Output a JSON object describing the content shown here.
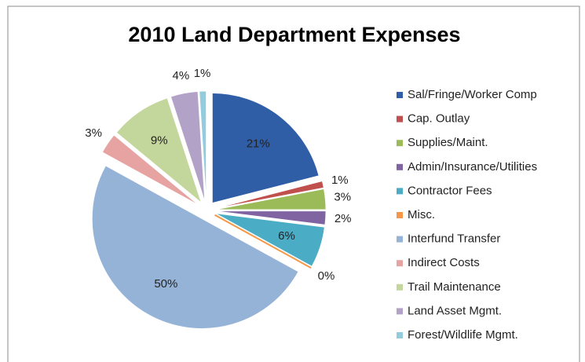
{
  "chart_data": {
    "type": "pie",
    "title": "2010 Land Department Expenses",
    "categories": [
      "Sal/Fringe/Worker Comp",
      "Cap. Outlay",
      "Supplies/Maint.",
      "Admin/Insurance/Utilities",
      "Contractor Fees",
      "Misc.",
      "Interfund Transfer",
      "Indirect Costs",
      "Trail Maintenance",
      "Land Asset Mgmt.",
      "Forest/Wildlife Mgmt."
    ],
    "values": [
      21,
      1,
      3,
      2,
      6,
      0,
      50,
      3,
      9,
      4,
      1
    ],
    "value_labels": [
      "21%",
      "1%",
      "3%",
      "2%",
      "6%",
      "0%",
      "50%",
      "3%",
      "9%",
      "4%",
      "1%"
    ],
    "colors": [
      "#2f5ea6",
      "#c0504d",
      "#9bbb59",
      "#8064a2",
      "#4bacc6",
      "#f79646",
      "#95b3d7",
      "#e6a3a2",
      "#c3d69b",
      "#b3a2c7",
      "#93cddd"
    ],
    "legend": "right"
  }
}
